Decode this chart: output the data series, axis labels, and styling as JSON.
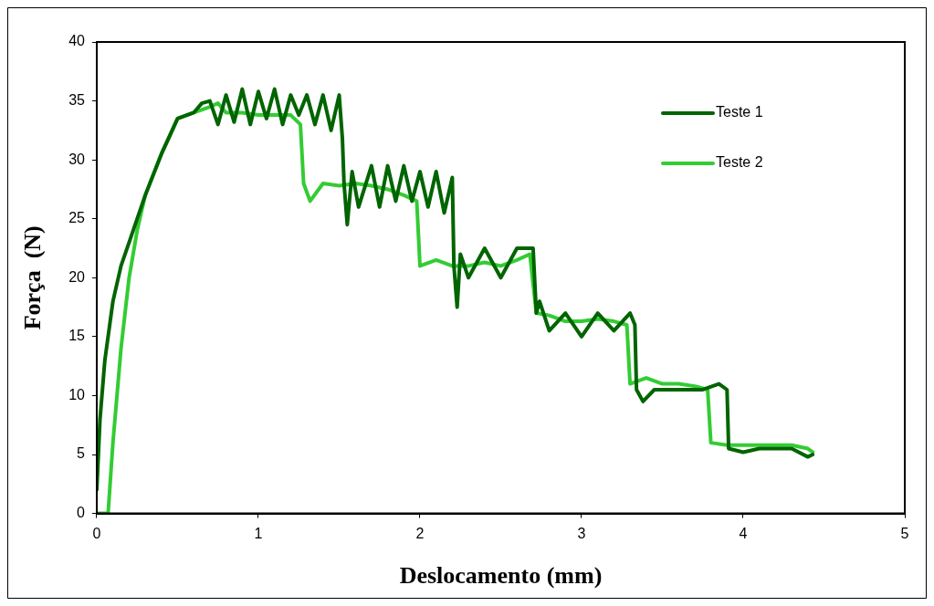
{
  "chart_data": {
    "type": "line",
    "xlabel": "Deslocamento (mm)",
    "ylabel": "Força  (N)",
    "xlim": [
      0,
      5
    ],
    "xticks": [
      0,
      1,
      2,
      3,
      4,
      5
    ],
    "ylim": [
      0,
      40
    ],
    "yticks": [
      0,
      5,
      10,
      15,
      20,
      25,
      30,
      35,
      40
    ],
    "grid": false,
    "legend": "top right",
    "marker": "none",
    "line_style": "solid",
    "series": [
      {
        "name": "Teste 1",
        "color": "#006400",
        "x": [
          0,
          0.02,
          0.05,
          0.1,
          0.15,
          0.2,
          0.3,
          0.4,
          0.45,
          0.5,
          0.6,
          0.65,
          0.7,
          0.75,
          0.8,
          0.85,
          0.9,
          0.95,
          1.0,
          1.05,
          1.1,
          1.15,
          1.2,
          1.25,
          1.3,
          1.35,
          1.4,
          1.45,
          1.5,
          1.52,
          1.53,
          1.55,
          1.58,
          1.62,
          1.7,
          1.75,
          1.8,
          1.85,
          1.9,
          1.95,
          2.0,
          2.05,
          2.1,
          2.15,
          2.2,
          2.21,
          2.23,
          2.25,
          2.3,
          2.4,
          2.5,
          2.6,
          2.7,
          2.72,
          2.74,
          2.8,
          2.9,
          3.0,
          3.1,
          3.2,
          3.3,
          3.33,
          3.34,
          3.38,
          3.45,
          3.6,
          3.75,
          3.85,
          3.9,
          3.91,
          4.0,
          4.1,
          4.2,
          4.3,
          4.4,
          4.43
        ],
        "values": [
          2,
          8,
          13,
          18,
          21,
          23,
          27,
          30.5,
          32,
          33.5,
          34,
          34.8,
          35,
          33,
          35.5,
          33.2,
          36,
          33,
          35.8,
          33.5,
          36,
          33,
          35.5,
          33.8,
          35.5,
          33,
          35.5,
          32.5,
          35.5,
          31.8,
          28,
          24.5,
          29,
          26,
          29.5,
          26,
          29.5,
          26.5,
          29.5,
          26.5,
          29,
          26,
          29,
          25.5,
          28.5,
          21,
          17.5,
          22,
          20,
          22.5,
          20,
          22.5,
          22.5,
          17,
          18,
          15.5,
          17,
          15,
          17,
          15.5,
          17,
          16,
          10.5,
          9.5,
          10.5,
          10.5,
          10.5,
          11,
          10.5,
          5.5,
          5.2,
          5.5,
          5.5,
          5.5,
          4.8,
          5
        ]
      },
      {
        "name": "Teste 2",
        "color": "#33cc33",
        "x": [
          0,
          0.07,
          0.1,
          0.15,
          0.2,
          0.25,
          0.3,
          0.4,
          0.5,
          0.6,
          0.7,
          0.75,
          0.8,
          0.9,
          1.0,
          1.1,
          1.2,
          1.26,
          1.28,
          1.32,
          1.4,
          1.5,
          1.6,
          1.7,
          1.8,
          1.9,
          1.98,
          2.0,
          2.1,
          2.2,
          2.3,
          2.4,
          2.5,
          2.6,
          2.68,
          2.72,
          2.8,
          2.9,
          3.0,
          3.1,
          3.2,
          3.28,
          3.3,
          3.4,
          3.5,
          3.6,
          3.7,
          3.78,
          3.8,
          3.9,
          4.0,
          4.1,
          4.2,
          4.3,
          4.4,
          4.43
        ],
        "values": [
          0,
          0,
          6,
          14,
          20,
          24,
          27,
          30.5,
          33.5,
          34,
          34.5,
          34.8,
          34,
          34,
          33.8,
          33.8,
          33.8,
          33,
          28,
          26.5,
          28,
          27.8,
          28,
          27.8,
          27.5,
          27,
          26.5,
          21,
          21.5,
          21,
          21,
          21.3,
          21,
          21.5,
          22,
          17,
          16.8,
          16.3,
          16.3,
          16.5,
          16.3,
          16,
          11,
          11.5,
          11,
          11,
          10.8,
          10.5,
          6,
          5.8,
          5.8,
          5.8,
          5.8,
          5.8,
          5.5,
          5.2
        ]
      }
    ]
  }
}
